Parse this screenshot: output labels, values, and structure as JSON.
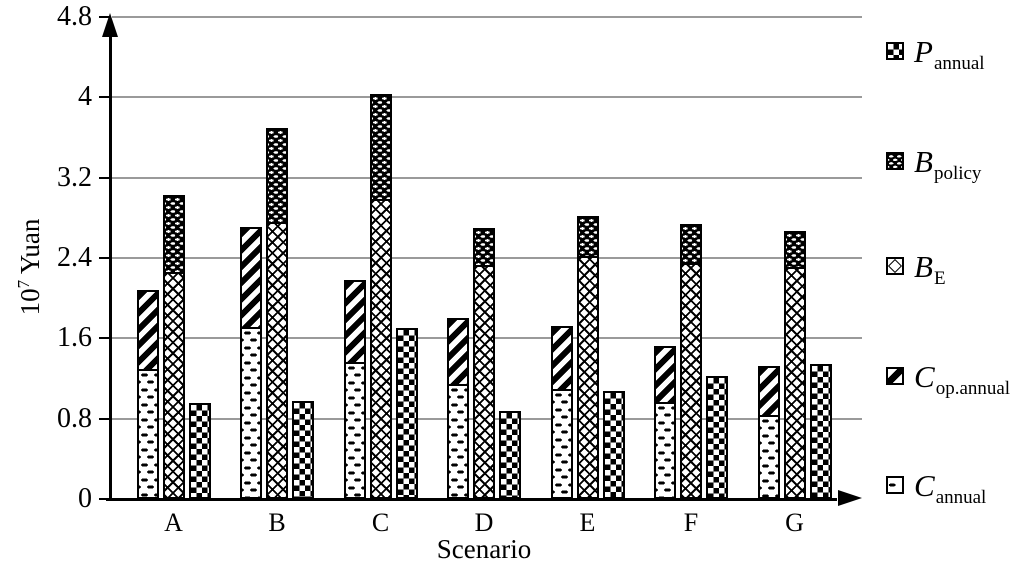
{
  "figure": {
    "background": "#ffffff"
  },
  "colors": {
    "grid": "#9a9a9a",
    "axis": "#000000",
    "ink": "#000000",
    "fill": "#ffffff"
  },
  "axes": {
    "y": {
      "title": "10^7 Yuan",
      "title_base": "10",
      "title_sup": "7",
      "title_unit": " Yuan",
      "tick_labels": [
        "0",
        "0.8",
        "1.6",
        "2.4",
        "3.2",
        "4",
        "4.8"
      ]
    },
    "x": {
      "title": "Scenario",
      "tick_labels": [
        "A",
        "B",
        "C",
        "D",
        "E",
        "F",
        "G"
      ]
    }
  },
  "legend": {
    "position": "right",
    "items": [
      {
        "label_main": "P",
        "label_sub": "annual",
        "series": "P_annual",
        "pattern": "pannual"
      },
      {
        "label_main": "B",
        "label_sub": "policy",
        "series": "B_policy",
        "pattern": "bpolicy"
      },
      {
        "label_main": "B",
        "label_sub": "E",
        "series": "B_E",
        "pattern": "be"
      },
      {
        "label_main": "C",
        "label_sub": "op.annual",
        "series": "C_op.annual",
        "pattern": "copannual"
      },
      {
        "label_main": "C",
        "label_sub": "annual",
        "series": "C_annual",
        "pattern": "cannual"
      }
    ]
  },
  "chart_data": {
    "type": "bar",
    "subtype": "grouped-stacked",
    "title": "",
    "xlabel": "Scenario",
    "ylabel": "10^7 Yuan",
    "ylim": [
      0,
      4.8
    ],
    "yticks": [
      0,
      0.8,
      1.6,
      2.4,
      3.2,
      4,
      4.8
    ],
    "grid": true,
    "legend_position": "right",
    "categories": [
      "A",
      "B",
      "C",
      "D",
      "E",
      "F",
      "G"
    ],
    "series": [
      {
        "name": "C_annual",
        "pattern": "cannual",
        "values": [
          1.29,
          1.71,
          1.36,
          1.15,
          1.1,
          0.97,
          0.84
        ]
      },
      {
        "name": "C_op.annual",
        "pattern": "copannual",
        "values": [
          0.81,
          1.02,
          0.84,
          0.68,
          0.65,
          0.58,
          0.51
        ]
      },
      {
        "name": "B_E",
        "pattern": "be",
        "values": [
          2.26,
          2.76,
          2.99,
          2.33,
          2.42,
          2.35,
          2.31
        ]
      },
      {
        "name": "B_policy",
        "pattern": "bpolicy",
        "values": [
          0.79,
          0.96,
          1.07,
          0.39,
          0.42,
          0.41,
          0.38
        ]
      },
      {
        "name": "P_annual",
        "pattern": "pannual",
        "values": [
          0.96,
          0.98,
          1.7,
          0.88,
          1.08,
          1.22,
          1.34
        ]
      }
    ],
    "bars_per_group": [
      [
        "C_annual",
        "C_op.annual"
      ],
      [
        "B_E",
        "B_policy"
      ],
      [
        "P_annual"
      ]
    ]
  }
}
